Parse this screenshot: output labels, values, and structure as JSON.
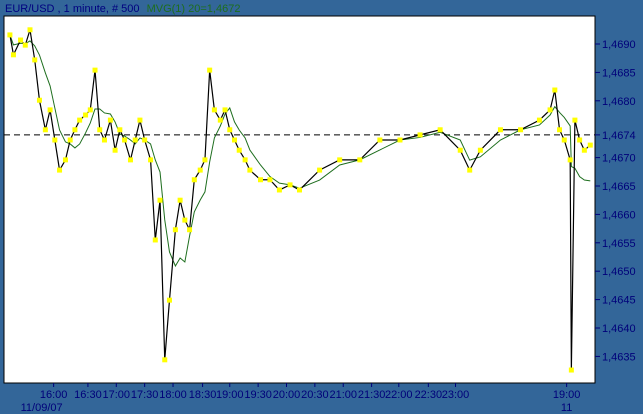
{
  "title": {
    "symbol_text": "EUR/USD , 1 minute, # 500",
    "indicator_text": "MVG(1) 20=1,4672"
  },
  "colors": {
    "background": "#336699",
    "plot_bg": "#ffffff",
    "price_line": "#000000",
    "marker": "#ffff00",
    "moving_average": "#1e6e1e",
    "axis_text": "#00007a"
  },
  "chart_data": {
    "type": "line",
    "xlabel": "",
    "ylabel": "",
    "grid": false,
    "bars_total": 500,
    "ylim": [
      1.4631,
      1.4698
    ],
    "y_ticks": [
      "1,4690",
      "1,4685",
      "1,4680",
      "1,4674",
      "1,4670",
      "1,4665",
      "1,4660",
      "1,4655",
      "1,4650",
      "1,4645",
      "1,4640",
      "1,4635"
    ],
    "y_tick_values": [
      1.469,
      1.4685,
      1.468,
      1.4674,
      1.467,
      1.4665,
      1.466,
      1.4655,
      1.465,
      1.4645,
      1.464,
      1.4635
    ],
    "current_price": 1.4674,
    "current_price_label": "1,4674",
    "x_ticks": [
      {
        "bar": 42,
        "label": "16:00",
        "sub": "11/09/07"
      },
      {
        "bar": 71,
        "label": "16:30"
      },
      {
        "bar": 95,
        "label": "17:00"
      },
      {
        "bar": 119,
        "label": "17:30"
      },
      {
        "bar": 143,
        "label": "18:00"
      },
      {
        "bar": 168,
        "label": "18:30"
      },
      {
        "bar": 191,
        "label": "19:00"
      },
      {
        "bar": 215,
        "label": "19:30"
      },
      {
        "bar": 239,
        "label": "20:00"
      },
      {
        "bar": 263,
        "label": "20:30"
      },
      {
        "bar": 287,
        "label": "21:00"
      },
      {
        "bar": 311,
        "label": "21:30"
      },
      {
        "bar": 334,
        "label": "22:00"
      },
      {
        "bar": 359,
        "label": "22:30"
      },
      {
        "bar": 382,
        "label": "23:00"
      },
      {
        "bar": 476,
        "label": "19:00",
        "sub": "11"
      }
    ],
    "series": [
      {
        "kind": "price",
        "points": [
          [
            5,
            1.46916
          ],
          [
            8,
            1.46881
          ],
          [
            14,
            1.46907
          ],
          [
            18,
            1.46898
          ],
          [
            22,
            1.46925
          ],
          [
            26,
            1.46872
          ],
          [
            30,
            1.46801
          ],
          [
            35,
            1.46749
          ],
          [
            39,
            1.46784
          ],
          [
            43,
            1.46731
          ],
          [
            47,
            1.46678
          ],
          [
            52,
            1.46696
          ],
          [
            56,
            1.46731
          ],
          [
            60,
            1.46749
          ],
          [
            64,
            1.46766
          ],
          [
            69,
            1.46775
          ],
          [
            73,
            1.46784
          ],
          [
            77,
            1.46854
          ],
          [
            81,
            1.46749
          ],
          [
            85,
            1.46731
          ],
          [
            90,
            1.46766
          ],
          [
            94,
            1.46713
          ],
          [
            98,
            1.46749
          ],
          [
            102,
            1.46731
          ],
          [
            107,
            1.46696
          ],
          [
            111,
            1.46731
          ],
          [
            115,
            1.46766
          ],
          [
            119,
            1.46731
          ],
          [
            124,
            1.46696
          ],
          [
            128,
            1.46555
          ],
          [
            132,
            1.46625
          ],
          [
            136,
            1.46344
          ],
          [
            140,
            1.46449
          ],
          [
            145,
            1.46573
          ],
          [
            149,
            1.46625
          ],
          [
            153,
            1.4659
          ],
          [
            157,
            1.46573
          ],
          [
            161,
            1.46661
          ],
          [
            166,
            1.46678
          ],
          [
            170,
            1.46696
          ],
          [
            174,
            1.46854
          ],
          [
            178,
            1.46784
          ],
          [
            183,
            1.46766
          ],
          [
            187,
            1.46784
          ],
          [
            191,
            1.46749
          ],
          [
            195,
            1.46731
          ],
          [
            199,
            1.46713
          ],
          [
            204,
            1.46696
          ],
          [
            208,
            1.46678
          ],
          [
            217,
            1.46661
          ],
          [
            225,
            1.46661
          ],
          [
            233,
            1.46643
          ],
          [
            242,
            1.46652
          ],
          [
            250,
            1.46643
          ],
          [
            267,
            1.46678
          ],
          [
            284,
            1.46696
          ],
          [
            301,
            1.46696
          ],
          [
            318,
            1.46731
          ],
          [
            335,
            1.46731
          ],
          [
            352,
            1.4674
          ],
          [
            369,
            1.46749
          ],
          [
            386,
            1.46713
          ],
          [
            394,
            1.46678
          ],
          [
            403,
            1.46713
          ],
          [
            420,
            1.46749
          ],
          [
            437,
            1.46749
          ],
          [
            453,
            1.46766
          ],
          [
            462,
            1.46784
          ],
          [
            466,
            1.46819
          ],
          [
            470,
            1.46749
          ],
          [
            474,
            1.46731
          ],
          [
            479,
            1.46696
          ],
          [
            480,
            1.46326
          ],
          [
            483,
            1.46766
          ],
          [
            487,
            1.46731
          ],
          [
            491,
            1.46713
          ],
          [
            496,
            1.46722
          ]
        ]
      },
      {
        "kind": "moving-average",
        "period": 20
      }
    ]
  }
}
